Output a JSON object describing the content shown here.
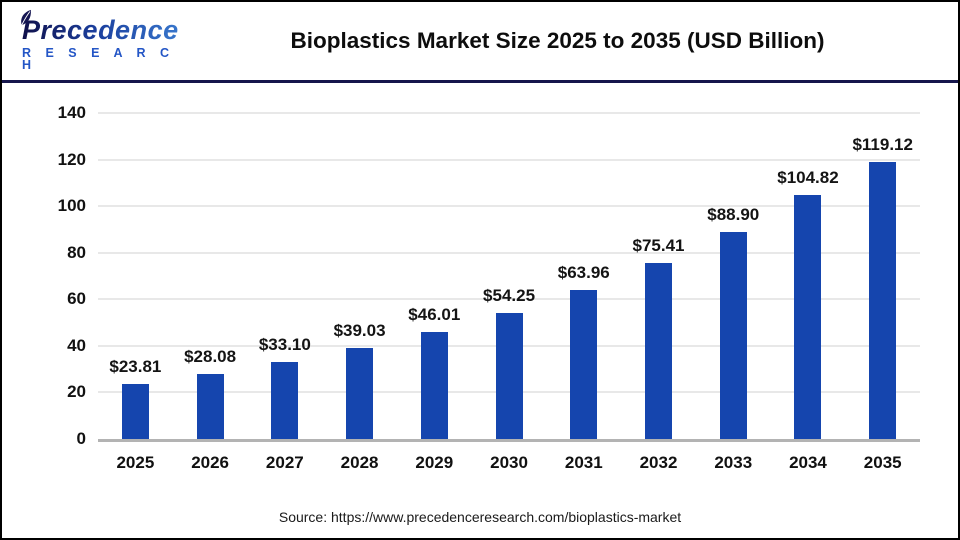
{
  "logo": {
    "brand": "Precedence",
    "sub": "R E S E A R C H"
  },
  "header": {
    "title": "Bioplastics Market Size 2025 to 2035 (USD Billion)"
  },
  "footer": {
    "source": "Source: https://www.precedenceresearch.com/bioplastics-market"
  },
  "colors": {
    "bar": "#1545ae",
    "grid": "#e8e8e8",
    "baseline": "#b3b3b3",
    "separator": "#16164c",
    "logo_navy": "#141551",
    "text": "#111111"
  },
  "chart_data": {
    "type": "bar",
    "title": "Bioplastics Market Size 2025 to 2035 (USD Billion)",
    "categories": [
      "2025",
      "2026",
      "2027",
      "2028",
      "2029",
      "2030",
      "2031",
      "2032",
      "2033",
      "2034",
      "2035"
    ],
    "values": [
      23.81,
      28.08,
      33.1,
      39.03,
      46.01,
      54.25,
      63.96,
      75.41,
      88.9,
      104.82,
      119.12
    ],
    "bar_labels": [
      "$23.81",
      "$28.08",
      "$33.10",
      "$39.03",
      "$46.01",
      "$54.25",
      "$63.96",
      "$75.41",
      "$88.90",
      "$104.82",
      "$119.12"
    ],
    "xlabel": "",
    "ylabel": "",
    "ylim": [
      0,
      140
    ],
    "yticks": [
      0,
      20,
      40,
      60,
      80,
      100,
      120,
      140
    ],
    "grid": true,
    "legend": false,
    "bar_color": "#1545ae"
  }
}
